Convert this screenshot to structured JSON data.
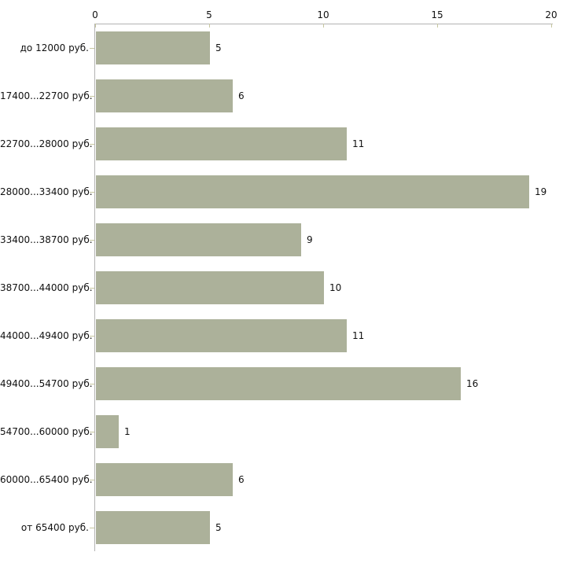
{
  "chart_data": {
    "type": "bar",
    "orientation": "horizontal",
    "title": "",
    "xlabel": "",
    "ylabel": "",
    "categories": [
      "до 12000 руб.",
      "17400...22700 руб.",
      "22700...28000 руб.",
      "28000...33400 руб.",
      "33400...38700 руб.",
      "38700...44000 руб.",
      "44000...49400 руб.",
      "49400...54700 руб.",
      "54700...60000 руб.",
      "60000...65400 руб.",
      "от 65400 руб."
    ],
    "values": [
      5,
      6,
      11,
      19,
      9,
      10,
      11,
      16,
      1,
      6,
      5
    ],
    "xlim": [
      0,
      20
    ],
    "x_ticks": [
      0,
      5,
      10,
      15,
      20
    ],
    "x_axis_position": "top",
    "grid": false,
    "legend": false,
    "value_labels": true,
    "colors": {
      "bar": "#acb19a",
      "axis_line": "#b3b3b3",
      "tick_mark": "#c6c6a0",
      "text": "#111111",
      "background": "#ffffff"
    }
  }
}
